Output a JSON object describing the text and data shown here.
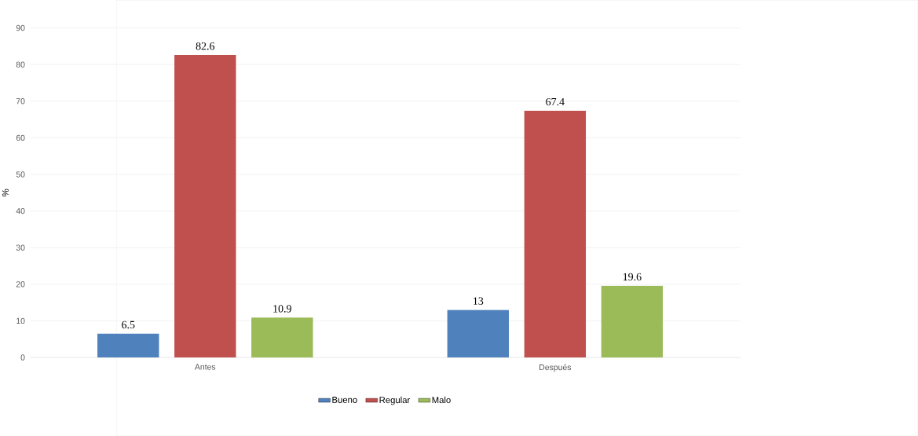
{
  "chart_data": {
    "type": "bar",
    "ylabel": "%",
    "categories": [
      "Antes",
      "Después"
    ],
    "series": [
      {
        "name": "Bueno",
        "color": "#4f81bd",
        "values": [
          6.5,
          13
        ]
      },
      {
        "name": "Regular",
        "color": "#c0504d",
        "values": [
          82.6,
          67.4
        ]
      },
      {
        "name": "Malo",
        "color": "#9bbb59",
        "values": [
          10.9,
          19.6
        ]
      }
    ],
    "ylim": [
      0,
      90
    ],
    "yticks": [
      0,
      10,
      20,
      30,
      40,
      50,
      60,
      70,
      80,
      90
    ],
    "grid": "y",
    "legend": "bottom",
    "data_labels": true
  }
}
